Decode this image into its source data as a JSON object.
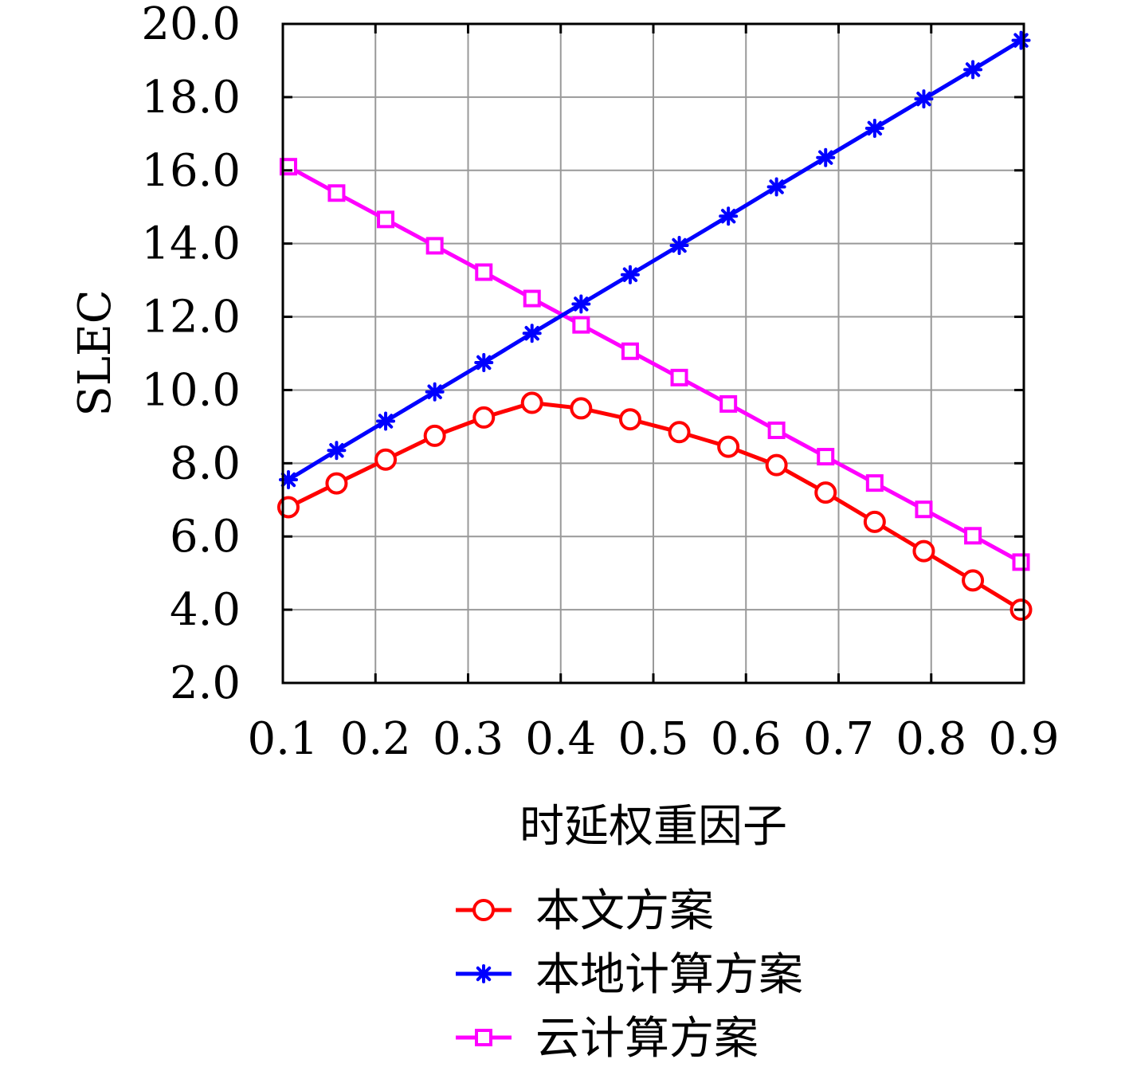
{
  "chart_data": {
    "type": "line",
    "title": "",
    "xlabel": "时延权重因子",
    "ylabel": "SLEC",
    "xlim": [
      0.1,
      0.9
    ],
    "ylim": [
      2.0,
      20.0
    ],
    "xticks": [
      "0.1",
      "0.2",
      "0.3",
      "0.4",
      "0.5",
      "0.6",
      "0.7",
      "0.8",
      "0.9"
    ],
    "yticks": [
      "2.0",
      "4.0",
      "6.0",
      "8.0",
      "10.0",
      "12.0",
      "14.0",
      "16.0",
      "18.0",
      "20.0"
    ],
    "grid": true,
    "legend_position": "bottom",
    "x": [
      0.106,
      0.158,
      0.211,
      0.264,
      0.317,
      0.369,
      0.422,
      0.475,
      0.528,
      0.581,
      0.633,
      0.686,
      0.739,
      0.792,
      0.845,
      0.897
    ],
    "series": [
      {
        "name": "本文方案",
        "color": "#ff0000",
        "marker": "circle",
        "values": [
          6.8,
          7.45,
          8.1,
          8.75,
          9.25,
          9.65,
          9.5,
          9.2,
          8.85,
          8.45,
          7.95,
          7.2,
          6.4,
          5.6,
          4.8,
          4.0
        ]
      },
      {
        "name": "本地计算方案",
        "color": "#0000ff",
        "marker": "asterisk",
        "values": [
          7.55,
          8.35,
          9.15,
          9.95,
          10.75,
          11.55,
          12.35,
          13.15,
          13.95,
          14.75,
          15.55,
          16.35,
          17.15,
          17.95,
          18.75,
          19.55
        ]
      },
      {
        "name": "云计算方案",
        "color": "#ff00ff",
        "marker": "square",
        "values": [
          16.1,
          15.38,
          14.66,
          13.94,
          13.22,
          12.5,
          11.78,
          11.06,
          10.34,
          9.62,
          8.9,
          8.18,
          7.46,
          6.74,
          6.02,
          5.3
        ]
      }
    ]
  }
}
